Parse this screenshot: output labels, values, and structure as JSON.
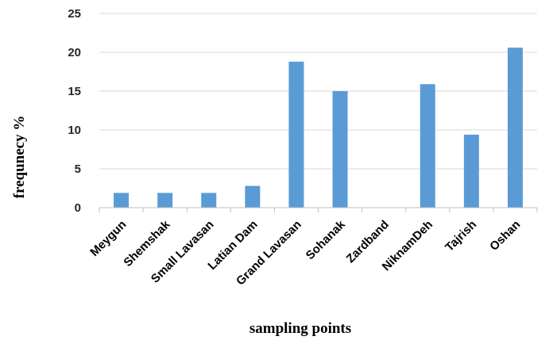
{
  "chart_data": {
    "type": "bar",
    "title": "",
    "xlabel": "sampling points",
    "ylabel": "frequnecy %",
    "categories": [
      "Meygun",
      "Shemshak",
      "Small Lavasan",
      "Latian Dam",
      "Grand Lavasan",
      "Sohanak",
      "Zardband",
      "NiknamDeh",
      "Tajrish",
      "Oshan"
    ],
    "values": [
      1.9,
      1.9,
      1.9,
      2.8,
      18.8,
      15.0,
      0,
      15.9,
      9.4,
      20.6
    ],
    "ylim": [
      0,
      25
    ],
    "yticks": [
      0,
      5,
      10,
      15,
      20,
      25
    ],
    "grid": true,
    "legend": "none",
    "colors": {
      "bar": "#5B9BD5",
      "grid": "#D9D9D9",
      "axis": "#BFBFBF"
    }
  }
}
